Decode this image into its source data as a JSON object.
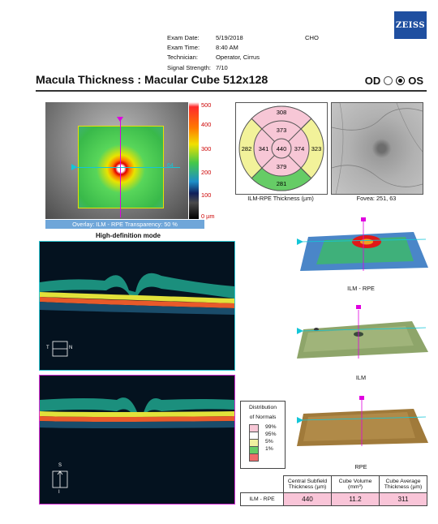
{
  "brand": "ZEISS",
  "exam": {
    "rows": [
      {
        "label": "Exam Date:",
        "value": "5/19/2018",
        "extra": "CHO"
      },
      {
        "label": "Exam Time:",
        "value": "8:40 AM",
        "extra": ""
      },
      {
        "label": "Technician:",
        "value": "Operator, Cirrus",
        "extra": ""
      },
      {
        "label": "Signal Strength:",
        "value": "7/10",
        "extra": ""
      }
    ]
  },
  "title": "Macula Thickness : Macular Cube 512x128",
  "eye": {
    "od_label": "OD",
    "os_label": "OS",
    "selected": "OS"
  },
  "map": {
    "scale_labels": [
      "500",
      "400",
      "300",
      "200",
      "100",
      "0 µm"
    ],
    "overlay_caption": "Overlay: ILM - RPE  Transparency: 50 %",
    "coord": "64",
    "hd_mode": "High-definition mode"
  },
  "etdrs": {
    "superior_outer": "308",
    "superior_inner": "373",
    "temporal_outer": "282",
    "temporal_inner": "341",
    "center": "440",
    "nasal_inner": "374",
    "nasal_outer": "323",
    "inferior_inner": "379",
    "inferior_outer": "281",
    "caption": "ILM-RPE Thickness (µm)"
  },
  "fundus": {
    "caption": "Fovea: 251, 63"
  },
  "oct": {
    "orient1": {
      "left": "T",
      "right": "N"
    },
    "orient2": {
      "top": "S",
      "bottom": "I"
    }
  },
  "views": [
    {
      "caption": "ILM - RPE"
    },
    {
      "caption": "ILM"
    },
    {
      "caption": "RPE"
    }
  ],
  "legend": {
    "title_line1": "Distribution",
    "title_line2": "of Normals",
    "items": [
      {
        "label": "99%",
        "color": "#f7c7d6"
      },
      {
        "label": "95%",
        "color": "#ffffff"
      },
      {
        "label": "5%",
        "color": "#f0f0a0"
      },
      {
        "label": "1%",
        "color": "#66cc66"
      },
      {
        "label": "",
        "color": "#ee6a6a"
      }
    ]
  },
  "summary": {
    "headers": [
      "Central Subfield Thickness (µm)",
      "Cube Volume (mm³)",
      "Cube Average Thickness (µm)"
    ],
    "row_label": "ILM - RPE",
    "values": [
      "440",
      "11.2",
      "311"
    ]
  }
}
